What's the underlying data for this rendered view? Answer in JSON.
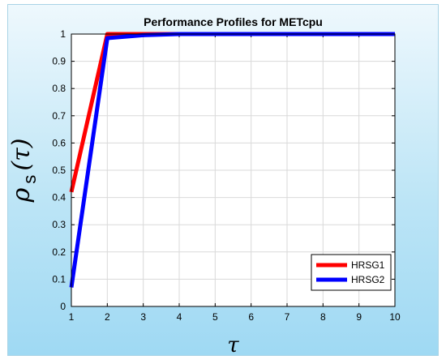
{
  "chart_data": {
    "type": "line",
    "title": "Performance Profiles for METcpu",
    "xlabel": "τ",
    "ylabel_main": "ρ",
    "ylabel_sub": "s",
    "ylabel_arg": "(τ)",
    "xlim": [
      1,
      10
    ],
    "ylim": [
      0,
      1
    ],
    "xticks": [
      1,
      2,
      3,
      4,
      5,
      6,
      7,
      8,
      9,
      10
    ],
    "yticks": [
      0,
      0.1,
      0.2,
      0.3,
      0.4,
      0.5,
      0.6,
      0.7,
      0.8,
      0.9,
      1
    ],
    "grid": true,
    "legend_position": "bottom-right",
    "series": [
      {
        "name": "HRSG1",
        "color": "#ff0000",
        "x": [
          1,
          2,
          3,
          4,
          5,
          6,
          7,
          8,
          9,
          10
        ],
        "y": [
          0.42,
          1.0,
          1.0,
          1.0,
          1.0,
          1.0,
          1.0,
          1.0,
          1.0,
          1.0
        ]
      },
      {
        "name": "HRSG2",
        "color": "#0000ff",
        "x": [
          1,
          2,
          3,
          4,
          5,
          6,
          7,
          8,
          9,
          10
        ],
        "y": [
          0.07,
          0.985,
          0.996,
          1.0,
          1.0,
          1.0,
          1.0,
          1.0,
          1.0,
          1.0
        ]
      }
    ]
  }
}
